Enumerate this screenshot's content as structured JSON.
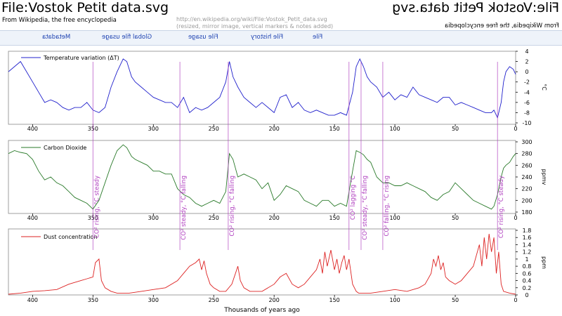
{
  "header": {
    "title": "File:Vostok Petit data.svg",
    "subtitle": "From Wikipedia, the free encyclopedia",
    "source_note_line1": "http://en.wikipedia.org/wiki/File:Vostok_Petit_data.svg",
    "source_note_line2": "(resized, mirror image, vertical markers & notes added)"
  },
  "nav": {
    "items": [
      "Metadata",
      "Global file usage",
      "File usage",
      "File history",
      "File"
    ]
  },
  "annotation_color": "#b040c0",
  "chart_data": [
    {
      "type": "line",
      "title": "",
      "legend": "Temperature variation (ΔT)",
      "color": "#2020cc",
      "xlabel": "",
      "ylabel": "°C",
      "x_reversed": true,
      "xlim": [
        0,
        420
      ],
      "ylim": [
        -10,
        4
      ],
      "x_ticks": [
        400,
        350,
        300,
        250,
        200,
        150,
        100,
        50,
        0
      ],
      "y_ticks": [
        4,
        2,
        0,
        -2,
        -4,
        -6,
        -8,
        -10
      ],
      "x": [
        420,
        415,
        410,
        405,
        400,
        395,
        390,
        385,
        380,
        375,
        370,
        365,
        360,
        355,
        350,
        345,
        340,
        335,
        330,
        325,
        322,
        318,
        315,
        310,
        305,
        300,
        295,
        290,
        285,
        280,
        275,
        270,
        265,
        260,
        255,
        250,
        245,
        240,
        237,
        234,
        230,
        225,
        220,
        215,
        210,
        205,
        200,
        195,
        190,
        185,
        180,
        175,
        170,
        165,
        160,
        155,
        150,
        145,
        140,
        135,
        132,
        129,
        126,
        123,
        120,
        115,
        110,
        105,
        100,
        95,
        90,
        85,
        80,
        75,
        70,
        65,
        60,
        55,
        50,
        45,
        40,
        35,
        30,
        25,
        20,
        18,
        15,
        12,
        10,
        8,
        5,
        2,
        0
      ],
      "y": [
        0,
        1,
        2,
        0,
        -2,
        -4,
        -6,
        -5.5,
        -6,
        -7,
        -7.5,
        -7,
        -7,
        -6,
        -7.5,
        -8,
        -7,
        -3,
        0,
        2.5,
        2,
        -1,
        -2,
        -3,
        -4,
        -5,
        -5.5,
        -6,
        -6,
        -7,
        -5,
        -8,
        -7,
        -7.5,
        -7,
        -6,
        -5,
        -2,
        2,
        -1,
        -3,
        -5,
        -6,
        -7,
        -6,
        -7,
        -8,
        -5,
        -4.5,
        -7,
        -6,
        -7.5,
        -8,
        -7.5,
        -8,
        -8.5,
        -8.5,
        -8,
        -8.5,
        -4,
        1,
        2.5,
        1,
        -1,
        -2,
        -3,
        -5,
        -4,
        -5.5,
        -4.5,
        -5,
        -3,
        -4.5,
        -5,
        -5.5,
        -6,
        -5,
        -5,
        -6.5,
        -6,
        -6.5,
        -7,
        -7.5,
        -8,
        -8,
        -7.5,
        -9,
        -6,
        -2,
        0,
        1,
        0.5,
        -0.5
      ]
    },
    {
      "type": "line",
      "title": "",
      "legend": "Carbon Dioxide",
      "color": "#2a7a2a",
      "xlabel": "",
      "ylabel": "ppmv",
      "x_reversed": true,
      "xlim": [
        0,
        420
      ],
      "ylim": [
        180,
        300
      ],
      "x_ticks": [
        400,
        350,
        300,
        250,
        200,
        150,
        100,
        50,
        0
      ],
      "y_ticks": [
        300,
        280,
        260,
        240,
        220,
        200,
        180
      ],
      "x": [
        420,
        415,
        410,
        405,
        400,
        395,
        390,
        385,
        380,
        375,
        370,
        365,
        360,
        355,
        350,
        345,
        340,
        335,
        330,
        325,
        322,
        318,
        315,
        310,
        305,
        300,
        295,
        290,
        285,
        280,
        275,
        270,
        265,
        260,
        255,
        250,
        245,
        240,
        237,
        234,
        230,
        225,
        220,
        215,
        210,
        205,
        200,
        195,
        190,
        185,
        180,
        175,
        170,
        165,
        160,
        155,
        150,
        145,
        140,
        135,
        132,
        129,
        126,
        123,
        120,
        115,
        110,
        105,
        100,
        95,
        90,
        85,
        80,
        75,
        70,
        65,
        60,
        55,
        50,
        45,
        40,
        35,
        30,
        25,
        20,
        18,
        15,
        12,
        10,
        8,
        5,
        2,
        0
      ],
      "y": [
        280,
        285,
        282,
        280,
        270,
        250,
        235,
        240,
        230,
        225,
        215,
        205,
        200,
        195,
        185,
        200,
        230,
        260,
        285,
        295,
        290,
        275,
        270,
        265,
        260,
        250,
        250,
        245,
        245,
        220,
        210,
        205,
        195,
        190,
        195,
        200,
        195,
        215,
        280,
        270,
        240,
        245,
        240,
        235,
        220,
        230,
        200,
        210,
        225,
        220,
        215,
        200,
        195,
        190,
        200,
        200,
        190,
        195,
        190,
        250,
        285,
        282,
        278,
        270,
        265,
        240,
        230,
        230,
        225,
        225,
        230,
        225,
        220,
        215,
        205,
        200,
        210,
        215,
        230,
        220,
        210,
        200,
        195,
        190,
        185,
        190,
        210,
        240,
        255,
        260,
        265,
        275,
        280
      ]
    },
    {
      "type": "line",
      "title": "",
      "legend": "Dust concentration",
      "color": "#dd2222",
      "xlabel": "Thousands of years ago",
      "ylabel": "ppm",
      "x_reversed": true,
      "xlim": [
        0,
        420
      ],
      "ylim": [
        0,
        1.8
      ],
      "x_ticks": [
        400,
        350,
        300,
        250,
        200,
        150,
        100,
        50,
        0
      ],
      "y_ticks": [
        1.8,
        1.6,
        1.4,
        1.2,
        1,
        0.8,
        0.6,
        0.4,
        0.2,
        0
      ],
      "x": [
        420,
        410,
        400,
        390,
        380,
        370,
        360,
        355,
        350,
        348,
        345,
        343,
        340,
        335,
        330,
        320,
        310,
        300,
        290,
        280,
        275,
        270,
        265,
        262,
        260,
        258,
        256,
        253,
        250,
        245,
        240,
        235,
        232,
        230,
        228,
        225,
        220,
        210,
        200,
        195,
        190,
        185,
        180,
        175,
        170,
        165,
        162,
        160,
        158,
        156,
        153,
        150,
        148,
        146,
        144,
        142,
        140,
        138,
        135,
        132,
        130,
        125,
        120,
        110,
        100,
        90,
        80,
        75,
        70,
        68,
        66,
        64,
        62,
        60,
        58,
        55,
        50,
        45,
        40,
        35,
        30,
        28,
        26,
        24,
        22,
        20,
        18,
        16,
        14,
        12,
        10,
        5,
        0
      ],
      "y": [
        0.02,
        0.05,
        0.1,
        0.12,
        0.15,
        0.3,
        0.4,
        0.45,
        0.5,
        0.9,
        1.0,
        0.4,
        0.2,
        0.1,
        0.05,
        0.05,
        0.1,
        0.15,
        0.2,
        0.4,
        0.6,
        0.8,
        0.9,
        1.0,
        0.7,
        0.95,
        0.6,
        0.3,
        0.2,
        0.1,
        0.1,
        0.3,
        0.6,
        0.8,
        0.4,
        0.2,
        0.1,
        0.1,
        0.3,
        0.5,
        0.6,
        0.3,
        0.2,
        0.3,
        0.5,
        0.7,
        1.0,
        0.6,
        1.2,
        0.8,
        1.25,
        0.7,
        1.0,
        0.6,
        0.9,
        1.1,
        0.7,
        1.0,
        0.3,
        0.1,
        0.05,
        0.05,
        0.05,
        0.1,
        0.15,
        0.1,
        0.2,
        0.3,
        0.6,
        1.0,
        0.8,
        1.1,
        0.7,
        0.9,
        0.5,
        0.4,
        0.3,
        0.4,
        0.6,
        0.8,
        1.4,
        0.8,
        1.6,
        1.0,
        1.7,
        1.2,
        1.6,
        0.6,
        1.2,
        0.3,
        0.1,
        0.05,
        0.02
      ]
    }
  ],
  "axes_labels": {
    "t_unit": "°C",
    "co2_unit": "ppmv",
    "dust_unit": "ppm",
    "x_title": "Thousands of years ago"
  },
  "markers": [
    {
      "x": 350,
      "label": "CO² rising, °C steady"
    },
    {
      "x": 278,
      "label": "CO² steady, °C falling"
    },
    {
      "x": 238,
      "label": "CO² rising, °C falling"
    },
    {
      "x": 138,
      "label": "CO² lagging °C"
    },
    {
      "x": 128,
      "label": "CO² steady, °C falling"
    },
    {
      "x": 110,
      "label": "CO² falling, °C rising"
    },
    {
      "x": 15,
      "label": "CO² rising, °C steady"
    }
  ]
}
